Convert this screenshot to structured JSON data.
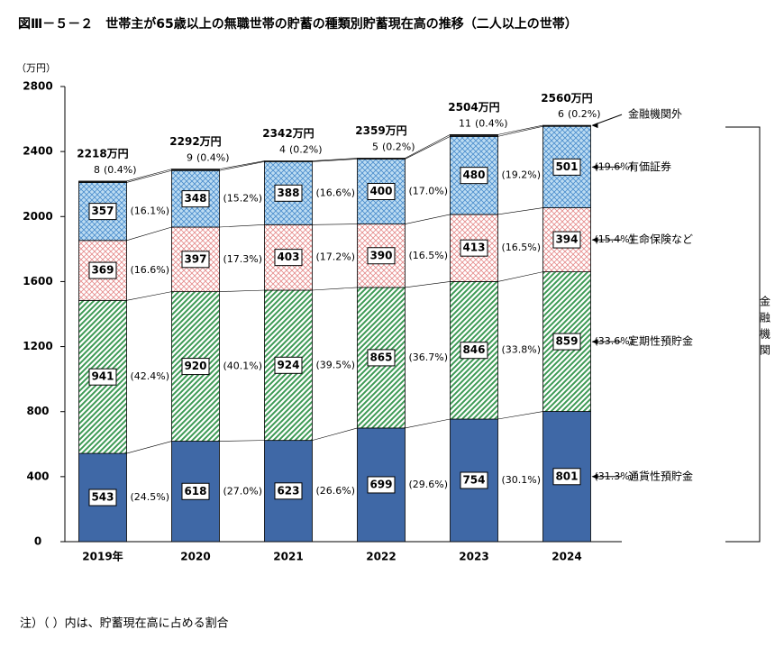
{
  "chart_data": {
    "type": "stacked-bar",
    "title": "図Ⅲ－５－２　世帯主が65歳以上の無職世帯の貯蓄の種類別貯蓄現在高の推移（二人以上の世帯）",
    "y_unit": "（万円）",
    "note": "注）（ ）内は、貯蓄現在高に占める割合",
    "bracket_label": "金融機関",
    "categories": [
      "2019年",
      "2020",
      "2021",
      "2022",
      "2023",
      "2024"
    ],
    "ylim": [
      0,
      2800
    ],
    "yticks": [
      0,
      400,
      800,
      1200,
      1600,
      2000,
      2400,
      2800
    ],
    "totals": [
      2218,
      2292,
      2342,
      2359,
      2504,
      2560
    ],
    "total_labels": [
      "2218万円",
      "2292万円",
      "2342万円",
      "2359万円",
      "2504万円",
      "2560万円"
    ],
    "series": [
      {
        "name": "通貨性預貯金",
        "color": "#3f68a6",
        "pattern": "solid",
        "values": [
          543,
          618,
          623,
          699,
          754,
          801
        ],
        "shares": [
          "(24.5%)",
          "(27.0%)",
          "(26.6%)",
          "(29.6%)",
          "(30.1%)",
          "(31.3%)"
        ]
      },
      {
        "name": "定期性預貯金",
        "color": "#3d9a55",
        "pattern": "stripes",
        "values": [
          941,
          920,
          924,
          865,
          846,
          859
        ],
        "shares": [
          "(42.4%)",
          "(40.1%)",
          "(39.5%)",
          "(36.7%)",
          "(33.8%)",
          "(33.6%)"
        ]
      },
      {
        "name": "生命保険など",
        "color": "#e58a8a",
        "pattern": "crosshatch",
        "values": [
          369,
          397,
          403,
          390,
          413,
          394
        ],
        "shares": [
          "(16.6%)",
          "(17.3%)",
          "(17.2%)",
          "(16.5%)",
          "(16.5%)",
          "(15.4%)"
        ]
      },
      {
        "name": "有価証券",
        "color": "#4a8ccc",
        "pattern": "dots",
        "values": [
          357,
          348,
          388,
          400,
          480,
          501
        ],
        "shares": [
          "(16.1%)",
          "(15.2%)",
          "(16.6%)",
          "(17.0%)",
          "(19.2%)",
          "(19.6%)"
        ]
      },
      {
        "name": "金融機関外",
        "color": "#222222",
        "pattern": "solid",
        "values": [
          8,
          9,
          4,
          5,
          11,
          6
        ],
        "shares": [
          "(0.4%)",
          "(0.4%)",
          "(0.2%)",
          "(0.2%)",
          "(0.4%)",
          "(0.2%)"
        ]
      }
    ]
  }
}
